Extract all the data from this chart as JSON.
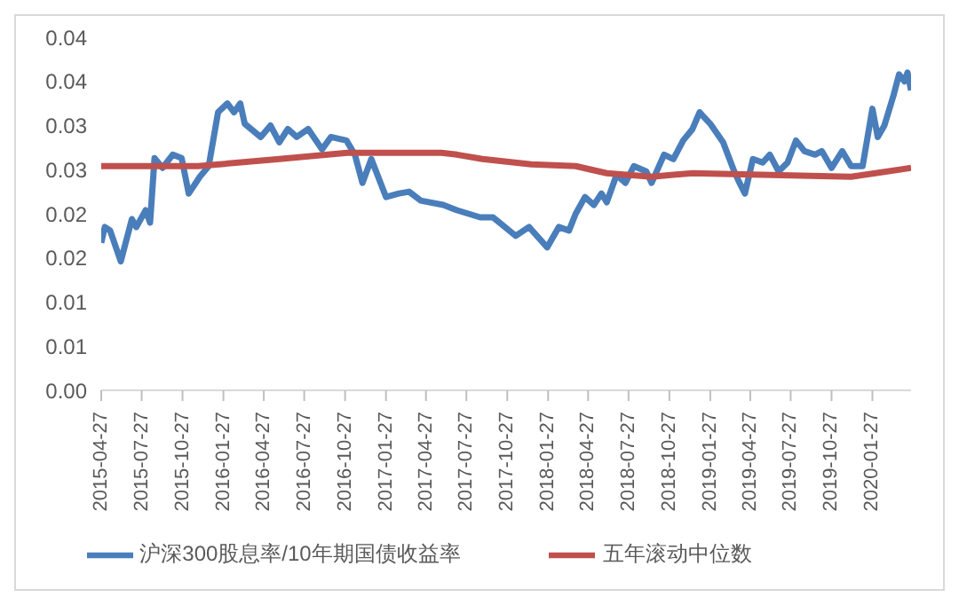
{
  "chart_data": {
    "type": "line",
    "ylim": [
      0,
      0.04
    ],
    "yticks": [
      {
        "value": 0,
        "label": "0.00"
      },
      {
        "value": 0.005,
        "label": "0.01"
      },
      {
        "value": 0.01,
        "label": "0.01"
      },
      {
        "value": 0.015,
        "label": "0.02"
      },
      {
        "value": 0.02,
        "label": "0.02"
      },
      {
        "value": 0.025,
        "label": "0.03"
      },
      {
        "value": 0.03,
        "label": "0.03"
      },
      {
        "value": 0.035,
        "label": "0.04"
      },
      {
        "value": 0.04,
        "label": "0.04"
      }
    ],
    "xlim": [
      "2015-04-27",
      "2020-04-23"
    ],
    "xticks": [
      "2015-04-27",
      "2015-07-27",
      "2015-10-27",
      "2016-01-27",
      "2016-04-27",
      "2016-07-27",
      "2016-10-27",
      "2017-01-27",
      "2017-04-27",
      "2017-07-27",
      "2017-10-27",
      "2018-01-27",
      "2018-04-27",
      "2018-07-27",
      "2018-10-27",
      "2019-01-27",
      "2019-04-27",
      "2019-07-27",
      "2019-10-27",
      "2020-01-27"
    ],
    "grid": false,
    "legend": "bottom",
    "marker": "none",
    "line_style": "solid",
    "series": [
      {
        "name": "沪深300股息率/10年期国债收益率",
        "color": "#4a7ebb",
        "x": [
          "2015-04-27",
          "2015-05-05",
          "2015-05-17",
          "2015-06-10",
          "2015-07-05",
          "2015-07-15",
          "2015-08-05",
          "2015-08-15",
          "2015-08-25",
          "2015-09-12",
          "2015-10-05",
          "2015-10-25",
          "2015-11-10",
          "2015-12-05",
          "2015-12-25",
          "2016-01-15",
          "2016-02-05",
          "2016-02-20",
          "2016-03-05",
          "2016-03-15",
          "2016-04-20",
          "2016-05-12",
          "2016-06-01",
          "2016-06-20",
          "2016-07-10",
          "2016-08-05",
          "2016-09-05",
          "2016-09-25",
          "2016-10-30",
          "2016-11-18",
          "2016-12-05",
          "2016-12-25",
          "2017-01-27",
          "2017-02-25",
          "2017-03-20",
          "2017-04-15",
          "2017-06-05",
          "2017-07-06",
          "2017-08-27",
          "2017-09-25",
          "2017-11-15",
          "2017-12-15",
          "2018-01-25",
          "2018-02-20",
          "2018-03-15",
          "2018-03-30",
          "2018-04-20",
          "2018-05-10",
          "2018-05-27",
          "2018-06-08",
          "2018-06-30",
          "2018-07-20",
          "2018-08-08",
          "2018-09-05",
          "2018-09-17",
          "2018-10-15",
          "2018-11-05",
          "2018-11-27",
          "2018-12-18",
          "2019-01-03",
          "2019-01-27",
          "2019-02-25",
          "2019-03-22",
          "2019-04-03",
          "2019-04-15",
          "2019-05-03",
          "2019-05-25",
          "2019-06-10",
          "2019-06-30",
          "2019-07-20",
          "2019-08-08",
          "2019-08-27",
          "2019-09-20",
          "2019-10-05",
          "2019-10-27",
          "2019-11-20",
          "2019-12-10",
          "2020-01-05",
          "2020-01-27",
          "2020-02-08",
          "2020-02-23",
          "2020-03-15",
          "2020-03-27",
          "2020-04-08",
          "2020-04-15",
          "2020-04-23"
        ],
        "values": [
          0.0167,
          0.0185,
          0.0181,
          0.0146,
          0.0194,
          0.0185,
          0.0204,
          0.019,
          0.0263,
          0.0252,
          0.0267,
          0.0263,
          0.0223,
          0.0242,
          0.0254,
          0.0315,
          0.0325,
          0.0315,
          0.0325,
          0.0302,
          0.0287,
          0.03,
          0.0281,
          0.0296,
          0.0287,
          0.0296,
          0.0273,
          0.0287,
          0.0283,
          0.0267,
          0.0235,
          0.0262,
          0.0219,
          0.0223,
          0.0225,
          0.0215,
          0.021,
          0.0204,
          0.0196,
          0.0196,
          0.0175,
          0.0185,
          0.0162,
          0.0185,
          0.0181,
          0.02,
          0.0219,
          0.021,
          0.0223,
          0.0213,
          0.0244,
          0.0235,
          0.0254,
          0.0248,
          0.0235,
          0.0267,
          0.0262,
          0.0283,
          0.0296,
          0.0315,
          0.0302,
          0.0281,
          0.0248,
          0.0235,
          0.0223,
          0.0262,
          0.0258,
          0.0267,
          0.0248,
          0.0258,
          0.0283,
          0.0271,
          0.0267,
          0.0271,
          0.0252,
          0.0271,
          0.0254,
          0.0254,
          0.0319,
          0.0287,
          0.03,
          0.0335,
          0.0358,
          0.035,
          0.036,
          0.034
        ]
      },
      {
        "name": "五年滚动中位数",
        "color": "#c0504d",
        "x": [
          "2015-04-27",
          "2015-12-01",
          "2016-06-01",
          "2016-11-01",
          "2017-06-01",
          "2017-07-06",
          "2017-09-01",
          "2017-12-20",
          "2018-03-30",
          "2018-06-08",
          "2018-09-17",
          "2018-12-18",
          "2019-12-10",
          "2020-04-23"
        ],
        "values": [
          0.0254,
          0.0254,
          0.0262,
          0.0269,
          0.0269,
          0.0267,
          0.0262,
          0.0256,
          0.0254,
          0.0246,
          0.0242,
          0.0246,
          0.0242,
          0.0252
        ]
      }
    ]
  }
}
